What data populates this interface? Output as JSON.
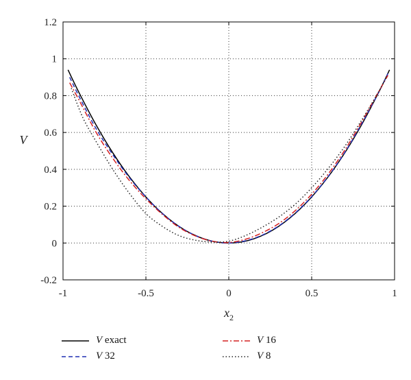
{
  "chart_data": {
    "type": "line",
    "title": "",
    "xlabel": "x",
    "xlabel_sub": "2",
    "ylabel": "V",
    "xlim": [
      -1,
      1
    ],
    "ylim": [
      -0.2,
      1.2
    ],
    "grid": true,
    "legend_position": "bottom",
    "x_ticks": [
      "-1",
      "-0.5",
      "0",
      "0.5",
      "1"
    ],
    "y_ticks": [
      "-0.2",
      "0",
      "0.2",
      "0.4",
      "0.6",
      "0.8",
      "1",
      "1.2"
    ],
    "x_tick_values": [
      -1,
      -0.5,
      0,
      0.5,
      1
    ],
    "y_tick_values": [
      -0.2,
      0,
      0.2,
      0.4,
      0.6,
      0.8,
      1,
      1.2
    ],
    "series": [
      {
        "name": "V exact",
        "color": "#000000",
        "style": "solid",
        "x": [
          -0.97,
          -0.9,
          -0.8,
          -0.7,
          -0.6,
          -0.5,
          -0.4,
          -0.3,
          -0.2,
          -0.1,
          0,
          0.1,
          0.2,
          0.3,
          0.4,
          0.5,
          0.6,
          0.7,
          0.8,
          0.9,
          0.97
        ],
        "y": [
          0.94,
          0.81,
          0.64,
          0.49,
          0.36,
          0.25,
          0.16,
          0.09,
          0.04,
          0.01,
          0,
          0.01,
          0.04,
          0.09,
          0.16,
          0.25,
          0.36,
          0.49,
          0.64,
          0.81,
          0.94
        ]
      },
      {
        "name": "V 32",
        "color": "#1f2db4",
        "style": "dashed",
        "x": [
          -0.96,
          -0.9,
          -0.8,
          -0.7,
          -0.6,
          -0.5,
          -0.4,
          -0.3,
          -0.2,
          -0.1,
          0,
          0.1,
          0.2,
          0.3,
          0.4,
          0.5,
          0.6,
          0.7,
          0.8,
          0.9,
          0.96
        ],
        "y": [
          0.9,
          0.79,
          0.62,
          0.48,
          0.355,
          0.25,
          0.16,
          0.09,
          0.04,
          0.01,
          0,
          0.012,
          0.042,
          0.092,
          0.162,
          0.252,
          0.362,
          0.492,
          0.645,
          0.81,
          0.92
        ]
      },
      {
        "name": "V 16",
        "color": "#d42020",
        "style": "dashdot",
        "x": [
          -0.96,
          -0.9,
          -0.8,
          -0.7,
          -0.6,
          -0.5,
          -0.4,
          -0.3,
          -0.2,
          -0.1,
          0,
          0.1,
          0.2,
          0.3,
          0.4,
          0.5,
          0.6,
          0.7,
          0.8,
          0.9,
          0.96
        ],
        "y": [
          0.87,
          0.77,
          0.6,
          0.46,
          0.34,
          0.24,
          0.155,
          0.085,
          0.038,
          0.01,
          0.003,
          0.02,
          0.055,
          0.105,
          0.175,
          0.265,
          0.375,
          0.505,
          0.655,
          0.815,
          0.91
        ]
      },
      {
        "name": "V 8",
        "color": "#222222",
        "style": "dotted",
        "x": [
          -0.95,
          -0.88,
          -0.8,
          -0.7,
          -0.6,
          -0.5,
          -0.4,
          -0.3,
          -0.2,
          -0.1,
          0,
          0.1,
          0.2,
          0.3,
          0.4,
          0.5,
          0.6,
          0.7,
          0.8,
          0.9,
          0.95
        ],
        "y": [
          0.84,
          0.68,
          0.55,
          0.4,
          0.27,
          0.16,
          0.09,
          0.04,
          0.015,
          0.005,
          0.01,
          0.04,
          0.085,
          0.14,
          0.21,
          0.3,
          0.405,
          0.525,
          0.665,
          0.815,
          0.9
        ]
      }
    ]
  },
  "legend": {
    "items": [
      {
        "italic": "V",
        "rest": " exact",
        "color": "#000000",
        "style": "solid"
      },
      {
        "italic": "V",
        "rest": " 16",
        "color": "#d42020",
        "style": "dashdot"
      },
      {
        "italic": "V",
        "rest": " 32",
        "color": "#1f2db4",
        "style": "dashed"
      },
      {
        "italic": "V",
        "rest": " 8",
        "color": "#222222",
        "style": "dotted"
      }
    ]
  }
}
